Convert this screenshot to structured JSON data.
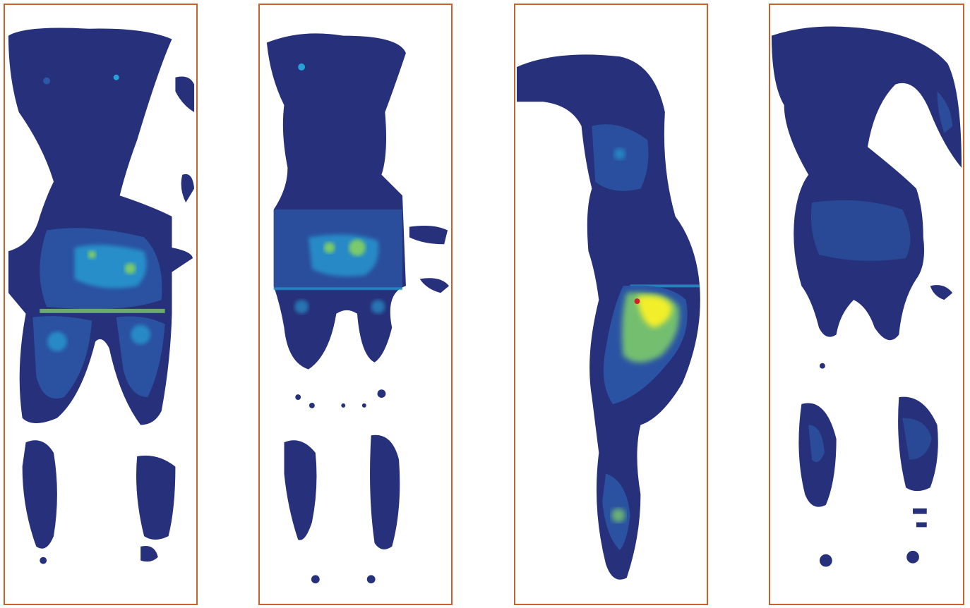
{
  "figure": {
    "panels": [
      {
        "id": "front-supine"
      },
      {
        "id": "back"
      },
      {
        "id": "side"
      },
      {
        "id": "back-2"
      }
    ]
  },
  "colors": {
    "border": "#c9612d",
    "low": "#27307a",
    "mid": "#2c58a8",
    "cyan": "#25a3d8",
    "green": "#7ccb6a",
    "yellow": "#f2ee2a",
    "red": "#d3202b"
  }
}
